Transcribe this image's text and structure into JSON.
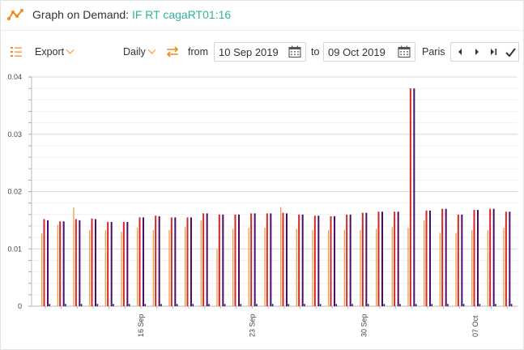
{
  "header": {
    "title": "Graph on Demand:",
    "subtitle": "IF RT cagaRT01:16",
    "logo_icon": "line-chart-logo-icon"
  },
  "toolbar": {
    "export_label": "Export",
    "granularity": "Daily",
    "from_label": "from",
    "from_date": "10 Sep 2019",
    "to_label": "to",
    "to_date": "09 Oct 2019",
    "timezone": "Paris",
    "icons": [
      "list-settings-icon",
      "swap-arrows-icon",
      "calendar-icon",
      "previous-icon",
      "next-icon",
      "last-icon",
      "apply-check-icon"
    ]
  },
  "colors": {
    "accent": "#f08a1e",
    "title_green": "#2fb59a",
    "series_orange": "#f39c3c",
    "series_red": "#d62728",
    "series_purple": "#4b0c6b",
    "series_navy": "#1f2a6b"
  },
  "chart_data": {
    "type": "bar",
    "ylim": [
      0,
      0.04
    ],
    "yticks": [
      "0",
      "0.01",
      "0.02",
      "0.03",
      "0.04"
    ],
    "categories": [
      "10 Sep",
      "11 Sep",
      "12 Sep",
      "13 Sep",
      "14 Sep",
      "15 Sep",
      "16 Sep",
      "17 Sep",
      "18 Sep",
      "19 Sep",
      "20 Sep",
      "21 Sep",
      "22 Sep",
      "23 Sep",
      "24 Sep",
      "25 Sep",
      "26 Sep",
      "27 Sep",
      "28 Sep",
      "29 Sep",
      "30 Sep",
      "01 Oct",
      "02 Oct",
      "03 Oct",
      "04 Oct",
      "05 Oct",
      "06 Oct",
      "07 Oct",
      "08 Oct",
      "09 Oct"
    ],
    "xtick_labels": [
      {
        "index": 6,
        "label": "16 Sep"
      },
      {
        "index": 13,
        "label": "23 Sep"
      },
      {
        "index": 20,
        "label": "30 Sep"
      },
      {
        "index": 27,
        "label": "07 Oct"
      }
    ],
    "series": [
      {
        "color": "#f39c3c",
        "values": [
          0.0127,
          0.0142,
          0.0172,
          0.0133,
          0.0133,
          0.013,
          0.0137,
          0.0133,
          0.0133,
          0.0138,
          0.015,
          0.01,
          0.0135,
          0.0137,
          0.0137,
          0.0173,
          0.0135,
          0.0133,
          0.0133,
          0.0133,
          0.0133,
          0.0135,
          0.0138,
          0.0137,
          0.015,
          0.0128,
          0.0128,
          0.0133,
          0.0133,
          0.0137
        ]
      },
      {
        "color": "#d62728",
        "values": [
          0.0152,
          0.0148,
          0.0152,
          0.0153,
          0.0147,
          0.0147,
          0.0155,
          0.0158,
          0.0155,
          0.0155,
          0.0162,
          0.016,
          0.016,
          0.0162,
          0.0162,
          0.0163,
          0.016,
          0.0158,
          0.0157,
          0.016,
          0.0163,
          0.0165,
          0.0165,
          0.038,
          0.0167,
          0.017,
          0.016,
          0.0168,
          0.017,
          0.0165
        ]
      },
      {
        "color": "#4b0c6b",
        "values": [
          0.015,
          0.0148,
          0.015,
          0.0152,
          0.0147,
          0.0147,
          0.0155,
          0.0157,
          0.0155,
          0.0155,
          0.0162,
          0.016,
          0.016,
          0.0162,
          0.0162,
          0.0162,
          0.016,
          0.0158,
          0.0157,
          0.016,
          0.0163,
          0.0165,
          0.0165,
          0.038,
          0.0167,
          0.017,
          0.016,
          0.0168,
          0.017,
          0.0165
        ]
      },
      {
        "color": "#1f2a6b",
        "values": [
          0.0004,
          0.0004,
          0.0004,
          0.0004,
          0.0004,
          0.0004,
          0.0004,
          0.0004,
          0.0004,
          0.0004,
          0.0004,
          0.0004,
          0.0004,
          0.0004,
          0.0004,
          0.0004,
          0.0004,
          0.0004,
          0.0004,
          0.0004,
          0.0004,
          0.0004,
          0.0004,
          0.0004,
          0.0004,
          0.0004,
          0.0004,
          0.0004,
          0.0004,
          0.0004
        ]
      }
    ]
  }
}
